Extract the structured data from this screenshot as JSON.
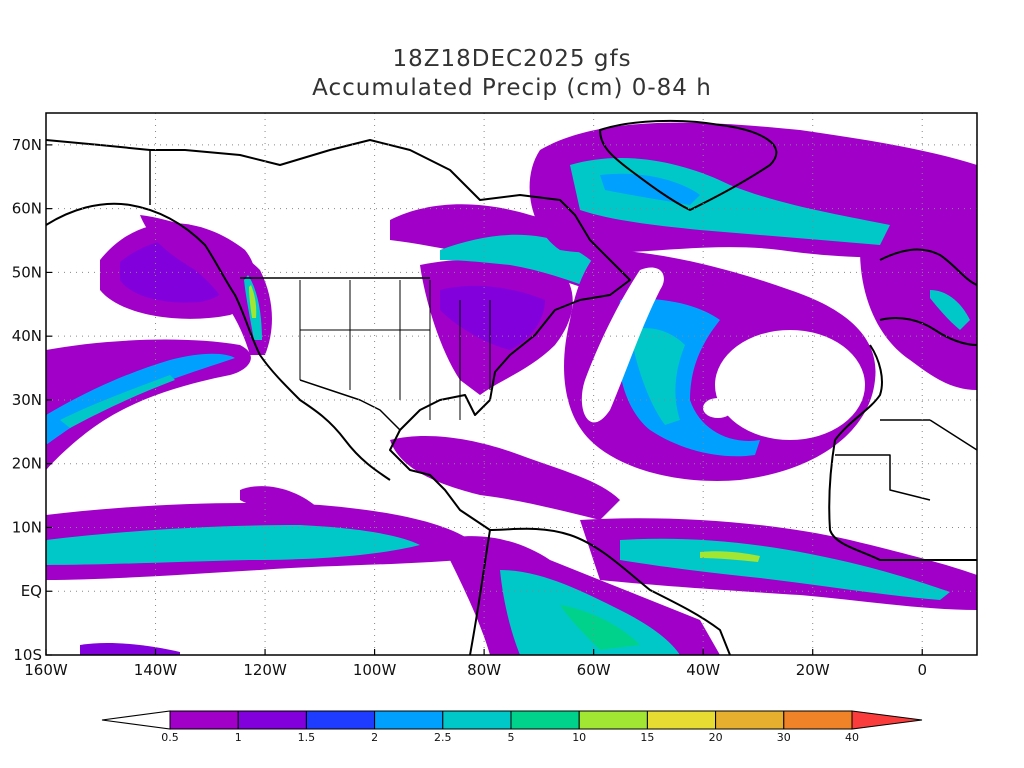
{
  "title": {
    "line1": "18Z18DEC2025 gfs",
    "line2": "Accumulated Precip (cm) 0-84 h"
  },
  "map": {
    "lon_range": [
      -160,
      10
    ],
    "lat_range": [
      -10,
      75
    ],
    "lon_ticks": [
      {
        "value": -160,
        "label": "160W"
      },
      {
        "value": -140,
        "label": "140W"
      },
      {
        "value": -120,
        "label": "120W"
      },
      {
        "value": -100,
        "label": "100W"
      },
      {
        "value": -80,
        "label": "80W"
      },
      {
        "value": -60,
        "label": "60W"
      },
      {
        "value": -40,
        "label": "40W"
      },
      {
        "value": -20,
        "label": "20W"
      },
      {
        "value": 0,
        "label": "0"
      }
    ],
    "lat_ticks": [
      {
        "value": 70,
        "label": "70N"
      },
      {
        "value": 60,
        "label": "60N"
      },
      {
        "value": 50,
        "label": "50N"
      },
      {
        "value": 40,
        "label": "40N"
      },
      {
        "value": 30,
        "label": "30N"
      },
      {
        "value": 20,
        "label": "20N"
      },
      {
        "value": 10,
        "label": "10N"
      },
      {
        "value": 0,
        "label": "EQ"
      },
      {
        "value": -10,
        "label": "10S"
      }
    ],
    "grid": "dotted"
  },
  "colorbar": {
    "levels": [
      "0.5",
      "1",
      "1.5",
      "2",
      "2.5",
      "5",
      "10",
      "15",
      "20",
      "30",
      "40"
    ],
    "colors": [
      "#ffffff",
      "#a000c8",
      "#8200dc",
      "#1e3cff",
      "#00a0ff",
      "#00c8c8",
      "#00d28c",
      "#a0e632",
      "#e6dc32",
      "#e6af2d",
      "#f08228",
      "#fa3c3c"
    ]
  }
}
